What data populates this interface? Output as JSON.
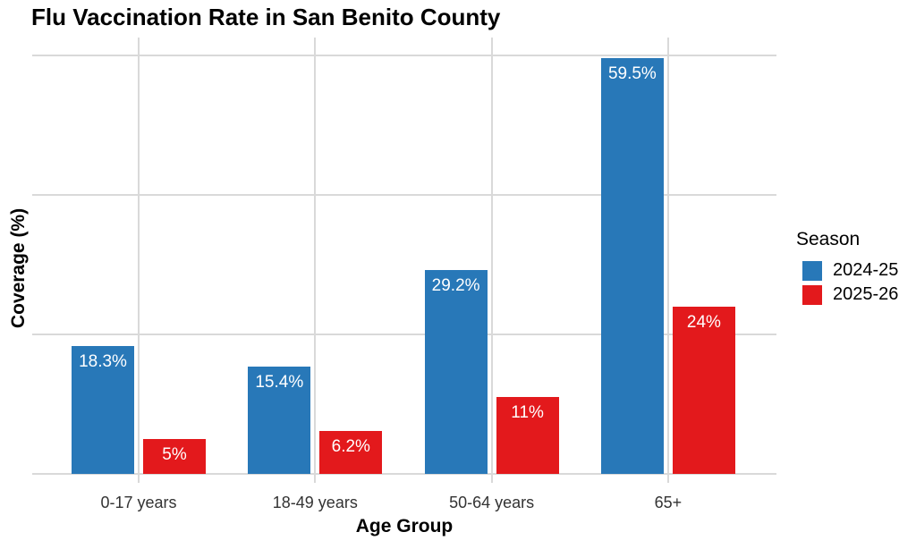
{
  "chart_data": {
    "type": "bar",
    "title": "Flu Vaccination Rate in San Benito County",
    "xlabel": "Age Group",
    "ylabel": "Coverage (%)",
    "categories": [
      "0-17 years",
      "18-49 years",
      "50-64 years",
      "65+"
    ],
    "series": [
      {
        "name": "2024-25",
        "color": "#2878b8",
        "values": [
          18.3,
          15.4,
          29.2,
          59.5
        ],
        "labels": [
          "18.3%",
          "15.4%",
          "29.2%",
          "59.5%"
        ]
      },
      {
        "name": "2025-26",
        "color": "#e3191c",
        "values": [
          5,
          6.2,
          11,
          24
        ],
        "labels": [
          "5%",
          "6.2%",
          "11%",
          "24%"
        ]
      }
    ],
    "legend": {
      "title": "Season",
      "position": "right"
    },
    "ylim": [
      0,
      62.5
    ],
    "y_gridlines": [
      0,
      20,
      40,
      60
    ],
    "y_tick_labels_shown": false,
    "grid": true,
    "gridline_color": "#d9d9d9",
    "bar_label_color": "#ffffff",
    "background_color": "#ffffff"
  }
}
